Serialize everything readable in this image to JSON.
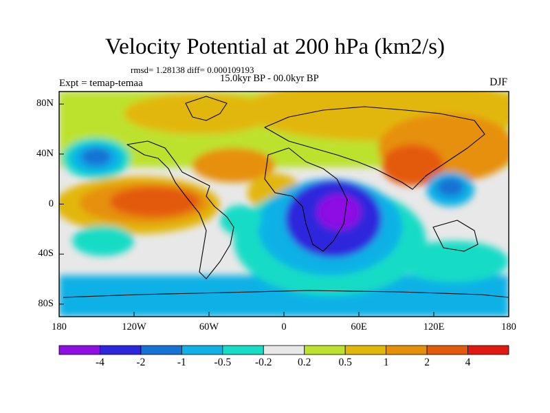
{
  "title": "Velocity Potential at 200 hPa (km2/s)",
  "stats_line": "rmsd= 1.28138 diff= 0.000109193",
  "period_line": "15.0kyr BP - 00.0kyr BP",
  "left_label": "Expt = temap-temaa",
  "season": "DJF",
  "lat_ticks": [
    {
      "label": "80N",
      "lat": 80
    },
    {
      "label": "40N",
      "lat": 40
    },
    {
      "label": "0",
      "lat": 0
    },
    {
      "label": "40S",
      "lat": -40
    },
    {
      "label": "80S",
      "lat": -80
    }
  ],
  "lon_ticks": [
    {
      "label": "180",
      "lon": -180
    },
    {
      "label": "120W",
      "lon": -120
    },
    {
      "label": "60W",
      "lon": -60
    },
    {
      "label": "0",
      "lon": 0
    },
    {
      "label": "60E",
      "lon": 60
    },
    {
      "label": "120E",
      "lon": 120
    },
    {
      "label": "180",
      "lon": 180
    }
  ],
  "colorbar": {
    "colors": [
      "#8d0fe4",
      "#2e26dc",
      "#1672d4",
      "#10b1e6",
      "#17dcc6",
      "#e8e8e8",
      "#bde22d",
      "#e2b70c",
      "#e6900a",
      "#e45a0c",
      "#e01a10"
    ],
    "labels": [
      "-4",
      "-2",
      "-1",
      "-0.5",
      "-0.2",
      "0.2",
      "0.5",
      "1",
      "2",
      "4"
    ]
  },
  "colors": {
    "background": "#e8e8e8",
    "coastline": "#000000"
  }
}
